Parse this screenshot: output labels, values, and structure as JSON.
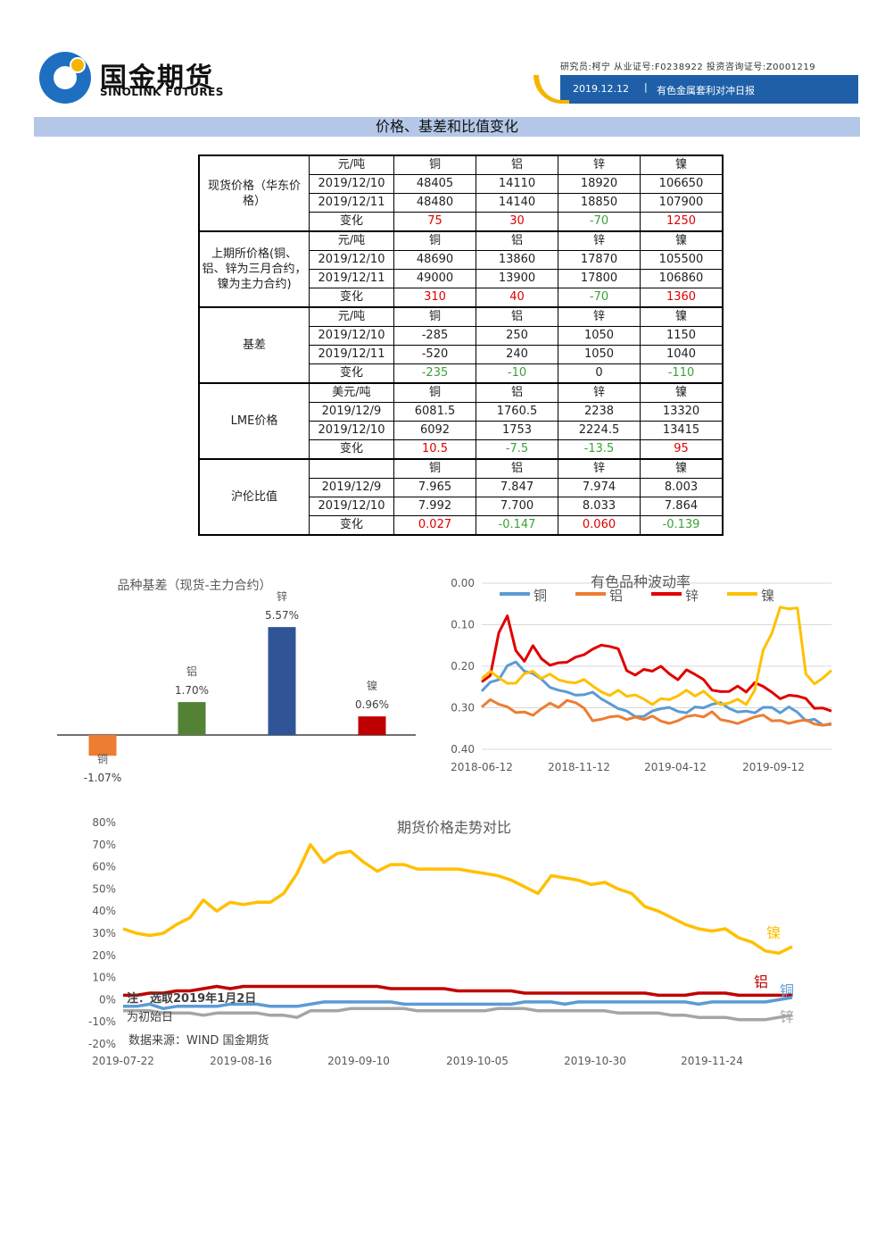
{
  "header": {
    "brand_cn": "国金期货",
    "brand_en": "SINOLINK FUTURES",
    "analyst_line": "研究员:柯宁  从业证号:F0238922  投资咨询证号:Z0001219",
    "report_date": "2019.12.12",
    "report_sep": "|",
    "report_name": "有色金属套利对冲日报"
  },
  "section_title": "价格、基差和比值变化",
  "table": {
    "colors": {
      "up": "#e00000",
      "down": "#3aa13a"
    },
    "groups": [
      {
        "label": "现货价格（华东价格）",
        "rows": [
          [
            "元/吨",
            "铜",
            "铝",
            "锌",
            "镍"
          ],
          [
            "2019/12/10",
            "48405",
            "14110",
            "18920",
            "106650"
          ],
          [
            "2019/12/11",
            "48480",
            "14140",
            "18850",
            "107900"
          ],
          [
            "变化",
            "75",
            "30",
            "-70",
            "1250"
          ]
        ]
      },
      {
        "label": "上期所价格(铜、铝、锌为三月合约，镍为主力合约)",
        "rows": [
          [
            "元/吨",
            "铜",
            "铝",
            "锌",
            "镍"
          ],
          [
            "2019/12/10",
            "48690",
            "13860",
            "17870",
            "105500"
          ],
          [
            "2019/12/11",
            "49000",
            "13900",
            "17800",
            "106860"
          ],
          [
            "变化",
            "310",
            "40",
            "-70",
            "1360"
          ]
        ]
      },
      {
        "label": "基差",
        "rows": [
          [
            "元/吨",
            "铜",
            "铝",
            "锌",
            "镍"
          ],
          [
            "2019/12/10",
            "-285",
            "250",
            "1050",
            "1150"
          ],
          [
            "2019/12/11",
            "-520",
            "240",
            "1050",
            "1040"
          ],
          [
            "变化",
            "-235",
            "-10",
            "0",
            "-110"
          ]
        ]
      },
      {
        "label": "LME价格",
        "rows": [
          [
            "美元/吨",
            "铜",
            "铝",
            "锌",
            "镍"
          ],
          [
            "2019/12/9",
            "6081.5",
            "1760.5",
            "2238",
            "13320"
          ],
          [
            "2019/12/10",
            "6092",
            "1753",
            "2224.5",
            "13415"
          ],
          [
            "变化",
            "10.5",
            "-7.5",
            "-13.5",
            "95"
          ]
        ]
      },
      {
        "label": "沪伦比值",
        "rows": [
          [
            "",
            "铜",
            "铝",
            "锌",
            "镍"
          ],
          [
            "2019/12/9",
            "7.965",
            "7.847",
            "7.974",
            "8.003"
          ],
          [
            "2019/12/10",
            "7.992",
            "7.700",
            "8.033",
            "7.864"
          ],
          [
            "变化",
            "0.027",
            "-0.147",
            "0.060",
            "-0.139"
          ]
        ]
      }
    ],
    "change_colors": [
      [
        "red",
        "red",
        "green",
        "red"
      ],
      [
        "red",
        "red",
        "green",
        "red"
      ],
      [
        "green",
        "green",
        "",
        "green"
      ],
      [
        "red",
        "green",
        "green",
        "red"
      ],
      [
        "red",
        "green",
        "red",
        "green"
      ]
    ]
  },
  "chart_data": [
    {
      "type": "bar",
      "title": "品种基差（现货-主力合约）",
      "categories": [
        "铜",
        "铝",
        "锌",
        "镍"
      ],
      "values": [
        -1.07,
        1.7,
        5.57,
        0.96
      ],
      "value_labels": [
        "-1.07%",
        "1.70%",
        "5.57%",
        "0.96%"
      ],
      "colors": [
        "#ed7d31",
        "#548235",
        "#2f5597",
        "#c00000"
      ],
      "ylim": [
        -1.5,
        6.5
      ]
    },
    {
      "type": "line",
      "title": "有色品种波动率",
      "x_ticks": [
        "2018-06-12",
        "2018-11-12",
        "2019-04-12",
        "2019-09-12"
      ],
      "y_ticks": [
        "0.00",
        "0.10",
        "0.20",
        "0.30",
        "0.40"
      ],
      "ylim": [
        0,
        0.4
      ],
      "legend": "top",
      "series": [
        {
          "name": "铜",
          "color": "#5b9bd5",
          "values": [
            0.14,
            0.16,
            0.17,
            0.2,
            0.21,
            0.19,
            0.18,
            0.17,
            0.15,
            0.14,
            0.14,
            0.13,
            0.13,
            0.14,
            0.12,
            0.11,
            0.1,
            0.09,
            0.08,
            0.08,
            0.09,
            0.1,
            0.1,
            0.09,
            0.09,
            0.1,
            0.1,
            0.11,
            0.11,
            0.1,
            0.09,
            0.09,
            0.09,
            0.1,
            0.1,
            0.09,
            0.1,
            0.09,
            0.07,
            0.07,
            0.06,
            0.06
          ]
        },
        {
          "name": "铝",
          "color": "#ed7d31",
          "values": [
            0.1,
            0.12,
            0.11,
            0.1,
            0.09,
            0.09,
            0.08,
            0.1,
            0.11,
            0.1,
            0.12,
            0.11,
            0.1,
            0.07,
            0.07,
            0.08,
            0.08,
            0.07,
            0.08,
            0.07,
            0.08,
            0.07,
            0.06,
            0.07,
            0.08,
            0.08,
            0.08,
            0.09,
            0.07,
            0.07,
            0.06,
            0.07,
            0.08,
            0.08,
            0.07,
            0.07,
            0.06,
            0.07,
            0.07,
            0.06,
            0.06,
            0.06
          ]
        },
        {
          "name": "锌",
          "color": "#e00000",
          "values": [
            0.16,
            0.18,
            0.28,
            0.32,
            0.24,
            0.21,
            0.25,
            0.22,
            0.2,
            0.21,
            0.21,
            0.22,
            0.23,
            0.24,
            0.25,
            0.25,
            0.24,
            0.19,
            0.18,
            0.19,
            0.19,
            0.2,
            0.18,
            0.17,
            0.19,
            0.18,
            0.17,
            0.14,
            0.14,
            0.14,
            0.15,
            0.14,
            0.16,
            0.15,
            0.14,
            0.12,
            0.13,
            0.13,
            0.12,
            0.1,
            0.1,
            0.09
          ]
        },
        {
          "name": "镍",
          "color": "#ffc000",
          "values": [
            0.17,
            0.19,
            0.17,
            0.16,
            0.16,
            0.18,
            0.19,
            0.17,
            0.18,
            0.17,
            0.16,
            0.16,
            0.17,
            0.15,
            0.14,
            0.13,
            0.14,
            0.13,
            0.13,
            0.12,
            0.11,
            0.12,
            0.12,
            0.13,
            0.14,
            0.13,
            0.14,
            0.12,
            0.11,
            0.11,
            0.12,
            0.11,
            0.14,
            0.24,
            0.28,
            0.34,
            0.34,
            0.34,
            0.18,
            0.16,
            0.17,
            0.19
          ]
        }
      ]
    },
    {
      "type": "line",
      "title": "期货价格走势对比",
      "x_ticks": [
        "2019-07-22",
        "2019-08-16",
        "2019-09-10",
        "2019-10-05",
        "2019-10-30",
        "2019-11-24"
      ],
      "y_ticks": [
        "80%",
        "70%",
        "60%",
        "50%",
        "40%",
        "30%",
        "20%",
        "10%",
        "0%",
        "-10%",
        "-20%"
      ],
      "ylim": [
        -20,
        80
      ],
      "note_lines": [
        "注：选取2019年1月2日",
        "为初始日"
      ],
      "source": "数据来源：WIND 国金期货",
      "series": [
        {
          "name": "镍",
          "color": "#ffc000",
          "values": [
            32,
            30,
            29,
            30,
            34,
            37,
            45,
            40,
            44,
            43,
            44,
            44,
            48,
            57,
            70,
            62,
            66,
            67,
            62,
            58,
            61,
            61,
            59,
            59,
            59,
            59,
            58,
            57,
            56,
            54,
            51,
            48,
            56,
            55,
            54,
            52,
            53,
            50,
            48,
            42,
            40,
            37,
            34,
            32,
            31,
            32,
            28,
            26,
            22,
            21,
            24
          ]
        },
        {
          "name": "铝",
          "color": "#c00000",
          "values": [
            2,
            2,
            3,
            3,
            4,
            4,
            5,
            6,
            5,
            6,
            6,
            6,
            6,
            6,
            6,
            6,
            6,
            6,
            6,
            6,
            5,
            5,
            5,
            5,
            5,
            4,
            4,
            4,
            4,
            4,
            3,
            3,
            3,
            3,
            3,
            3,
            3,
            3,
            3,
            3,
            2,
            2,
            2,
            3,
            3,
            3,
            2,
            2,
            2,
            2,
            2
          ]
        },
        {
          "name": "铜",
          "color": "#5b9bd5",
          "values": [
            -3,
            -3,
            -2,
            -4,
            -3,
            -3,
            -3,
            -3,
            -2,
            -2,
            -2,
            -3,
            -3,
            -3,
            -2,
            -1,
            -1,
            -1,
            -1,
            -1,
            -1,
            -2,
            -2,
            -2,
            -2,
            -2,
            -2,
            -2,
            -2,
            -2,
            -1,
            -1,
            -1,
            -2,
            -1,
            -1,
            -1,
            -1,
            -1,
            -1,
            -1,
            -1,
            -1,
            -2,
            -1,
            -1,
            -1,
            -1,
            -1,
            0,
            1
          ]
        },
        {
          "name": "锌",
          "color": "#a5a5a5",
          "values": [
            -5,
            -5,
            -5,
            -6,
            -6,
            -6,
            -7,
            -6,
            -6,
            -6,
            -6,
            -7,
            -7,
            -8,
            -5,
            -5,
            -5,
            -4,
            -4,
            -4,
            -4,
            -4,
            -5,
            -5,
            -5,
            -5,
            -5,
            -5,
            -4,
            -4,
            -4,
            -5,
            -5,
            -5,
            -5,
            -5,
            -5,
            -6,
            -6,
            -6,
            -6,
            -7,
            -7,
            -8,
            -8,
            -8,
            -9,
            -9,
            -9,
            -8,
            -7
          ]
        }
      ]
    }
  ]
}
